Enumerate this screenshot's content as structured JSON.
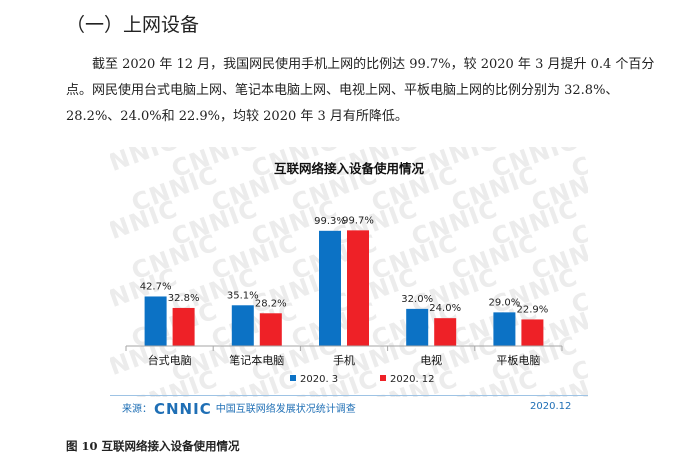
{
  "section_heading": "（一）上网设备",
  "paragraph": "截至 2020 年 12 月，我国网民使用手机上网的比例达 99.7%，较 2020 年 3 月提升 0.4 个百分点。网民使用台式电脑上网、笔记本电脑上网、电视上网、平板电脑上网的比例分别为 32.8%、28.2%、24.0%和 22.9%，均较 2020 年 3 月有所降低。",
  "watermark": "CNNIC",
  "chart_data": {
    "type": "bar",
    "title": "互联网络接入设备使用情况",
    "categories": [
      "台式电脑",
      "笔记本电脑",
      "手机",
      "电视",
      "平板电脑"
    ],
    "series": [
      {
        "name": "2020. 3",
        "values": [
          42.7,
          35.1,
          99.3,
          32.0,
          29.0
        ],
        "labels": [
          "42.7%",
          "35.1%",
          "99.3%",
          "32.0%",
          "29.0%"
        ],
        "color": "#0c72c5"
      },
      {
        "name": "2020. 12",
        "values": [
          32.8,
          28.2,
          99.7,
          24.0,
          22.9
        ],
        "labels": [
          "32.8%",
          "28.2%",
          "99.7%",
          "24.0%",
          "22.9%"
        ],
        "color": "#ee2127"
      }
    ],
    "ylim": [
      0,
      100
    ],
    "legend_position": "bottom",
    "grid": false
  },
  "source": {
    "prefix": "来源：",
    "logo_text": "CNNIC",
    "org": "中国互联网络发展状况统计调查",
    "date": "2020.12"
  },
  "figure_caption": "图 10    互联网络接入设备使用情况"
}
